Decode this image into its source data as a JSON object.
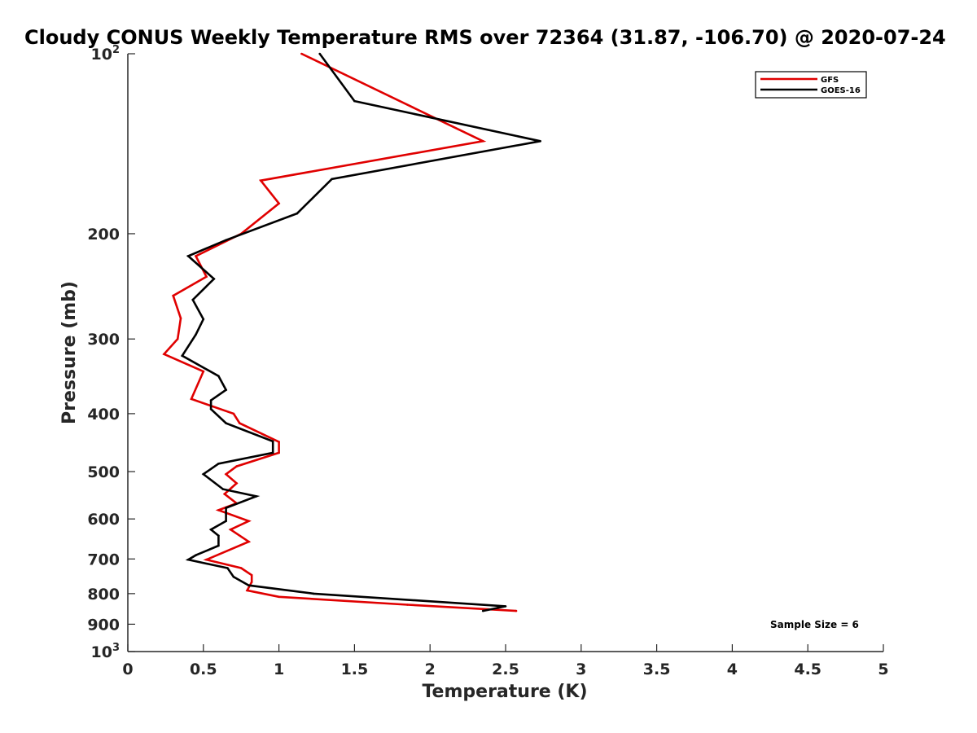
{
  "chart_data": {
    "type": "line",
    "title": "Cloudy CONUS Weekly Temperature RMS over 72364 (31.87, -106.70) @ 2020-07-24",
    "xlabel": "Temperature (K)",
    "ylabel": "Pressure (mb)",
    "xlim": [
      0,
      5
    ],
    "ylim": [
      100,
      1000
    ],
    "y_scale": "log",
    "y_reversed": true,
    "x_ticks": [
      "0",
      "0.5",
      "1",
      "1.5",
      "2",
      "2.5",
      "3",
      "3.5",
      "4",
      "4.5",
      "5"
    ],
    "y_ticks": [
      {
        "value": 100,
        "base": "10",
        "exp": "2"
      },
      {
        "value": 200,
        "label": "200"
      },
      {
        "value": 300,
        "label": "300"
      },
      {
        "value": 400,
        "label": "400"
      },
      {
        "value": 500,
        "label": "500"
      },
      {
        "value": 600,
        "label": "600"
      },
      {
        "value": 700,
        "label": "700"
      },
      {
        "value": 800,
        "label": "800"
      },
      {
        "value": 900,
        "label": "900"
      },
      {
        "value": 1000,
        "base": "10",
        "exp": "3"
      }
    ],
    "grid": false,
    "legend_position": "top-right",
    "annotation": "Sample Size = 6",
    "series": [
      {
        "name": "GFS",
        "color": "#e00000",
        "points": [
          [
            1.15,
            100
          ],
          [
            2.35,
            140
          ],
          [
            0.88,
            163
          ],
          [
            1.0,
            178
          ],
          [
            0.75,
            200
          ],
          [
            0.45,
            218
          ],
          [
            0.52,
            236
          ],
          [
            0.3,
            254
          ],
          [
            0.35,
            277
          ],
          [
            0.33,
            300
          ],
          [
            0.24,
            318
          ],
          [
            0.5,
            340
          ],
          [
            0.42,
            378
          ],
          [
            0.7,
            400
          ],
          [
            0.74,
            415
          ],
          [
            1.0,
            446
          ],
          [
            1.0,
            465
          ],
          [
            0.72,
            490
          ],
          [
            0.65,
            505
          ],
          [
            0.72,
            523
          ],
          [
            0.64,
            545
          ],
          [
            0.72,
            565
          ],
          [
            0.6,
            580
          ],
          [
            0.8,
            605
          ],
          [
            0.68,
            625
          ],
          [
            0.8,
            655
          ],
          [
            0.52,
            702
          ],
          [
            0.75,
            725
          ],
          [
            0.82,
            745
          ],
          [
            0.82,
            765
          ],
          [
            0.79,
            790
          ],
          [
            1.0,
            810
          ],
          [
            1.85,
            835
          ],
          [
            2.57,
            855
          ]
        ]
      },
      {
        "name": "GOES-16",
        "color": "#000000",
        "points": [
          [
            1.27,
            100
          ],
          [
            1.5,
            120
          ],
          [
            2.73,
            140
          ],
          [
            1.35,
            162
          ],
          [
            1.12,
            185
          ],
          [
            0.65,
            205
          ],
          [
            0.4,
            218
          ],
          [
            0.57,
            238
          ],
          [
            0.43,
            258
          ],
          [
            0.5,
            278
          ],
          [
            0.45,
            295
          ],
          [
            0.36,
            320
          ],
          [
            0.6,
            346
          ],
          [
            0.65,
            365
          ],
          [
            0.55,
            380
          ],
          [
            0.55,
            393
          ],
          [
            0.65,
            415
          ],
          [
            0.96,
            445
          ],
          [
            0.96,
            465
          ],
          [
            0.6,
            485
          ],
          [
            0.5,
            505
          ],
          [
            0.63,
            535
          ],
          [
            0.85,
            550
          ],
          [
            0.65,
            575
          ],
          [
            0.65,
            605
          ],
          [
            0.55,
            625
          ],
          [
            0.6,
            640
          ],
          [
            0.6,
            665
          ],
          [
            0.45,
            690
          ],
          [
            0.4,
            702
          ],
          [
            0.66,
            725
          ],
          [
            0.7,
            750
          ],
          [
            0.8,
            775
          ],
          [
            1.23,
            800
          ],
          [
            2.5,
            840
          ],
          [
            2.35,
            855
          ]
        ]
      }
    ]
  }
}
